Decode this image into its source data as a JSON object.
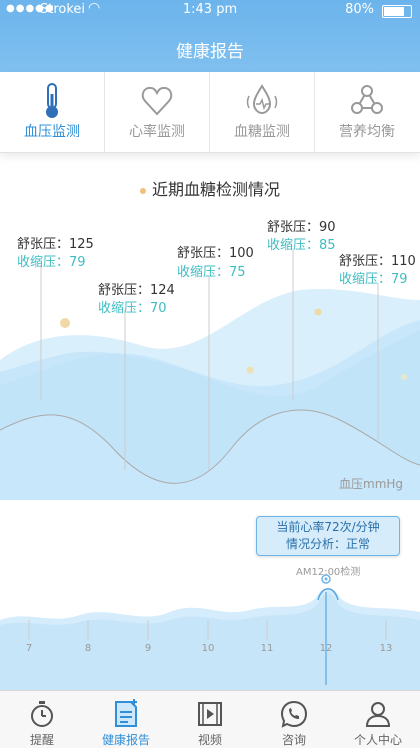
{
  "status": {
    "carrier": "Strokei",
    "time": "1:43 pm",
    "battery": "80%"
  },
  "header": {
    "title": "健康报告"
  },
  "tabs": [
    {
      "label": "血压监测",
      "icon": "thermometer-icon",
      "active": true
    },
    {
      "label": "心率监测",
      "icon": "heart-icon",
      "active": false
    },
    {
      "label": "血糖监测",
      "icon": "blood-drop-icon",
      "active": false
    },
    {
      "label": "营养均衡",
      "icon": "molecule-icon",
      "active": false
    }
  ],
  "section": {
    "title": "近期血糖检测情况"
  },
  "readings": [
    {
      "diastolic": "舒张压：125",
      "systolic": "收缩压：79"
    },
    {
      "diastolic": "舒张压：124",
      "systolic": "收缩压：70"
    },
    {
      "diastolic": "舒张压：100",
      "systolic": "收缩压：75"
    },
    {
      "diastolic": "舒张压：90",
      "systolic": "收缩压：85"
    },
    {
      "diastolic": "舒张压：110",
      "systolic": "收缩压：79"
    }
  ],
  "unit": "血压mmHg",
  "tooltip": {
    "line1": "当前心率72次/分钟",
    "line2": "情况分析：正常"
  },
  "marker": "AM12:00检测",
  "ticks": [
    "7",
    "8",
    "9",
    "10",
    "11",
    "12",
    "13"
  ],
  "nav": [
    {
      "label": "提醒",
      "icon": "stopwatch-icon",
      "active": false
    },
    {
      "label": "健康报告",
      "icon": "report-icon",
      "active": true
    },
    {
      "label": "视频",
      "icon": "video-icon",
      "active": false
    },
    {
      "label": "咨询",
      "icon": "phone-chat-icon",
      "active": false
    },
    {
      "label": "个人中心",
      "icon": "person-icon",
      "active": false
    }
  ],
  "colors": {
    "accent": "#2f8fd8",
    "systolic": "#3fbcc2",
    "header": "#74b8ee"
  }
}
